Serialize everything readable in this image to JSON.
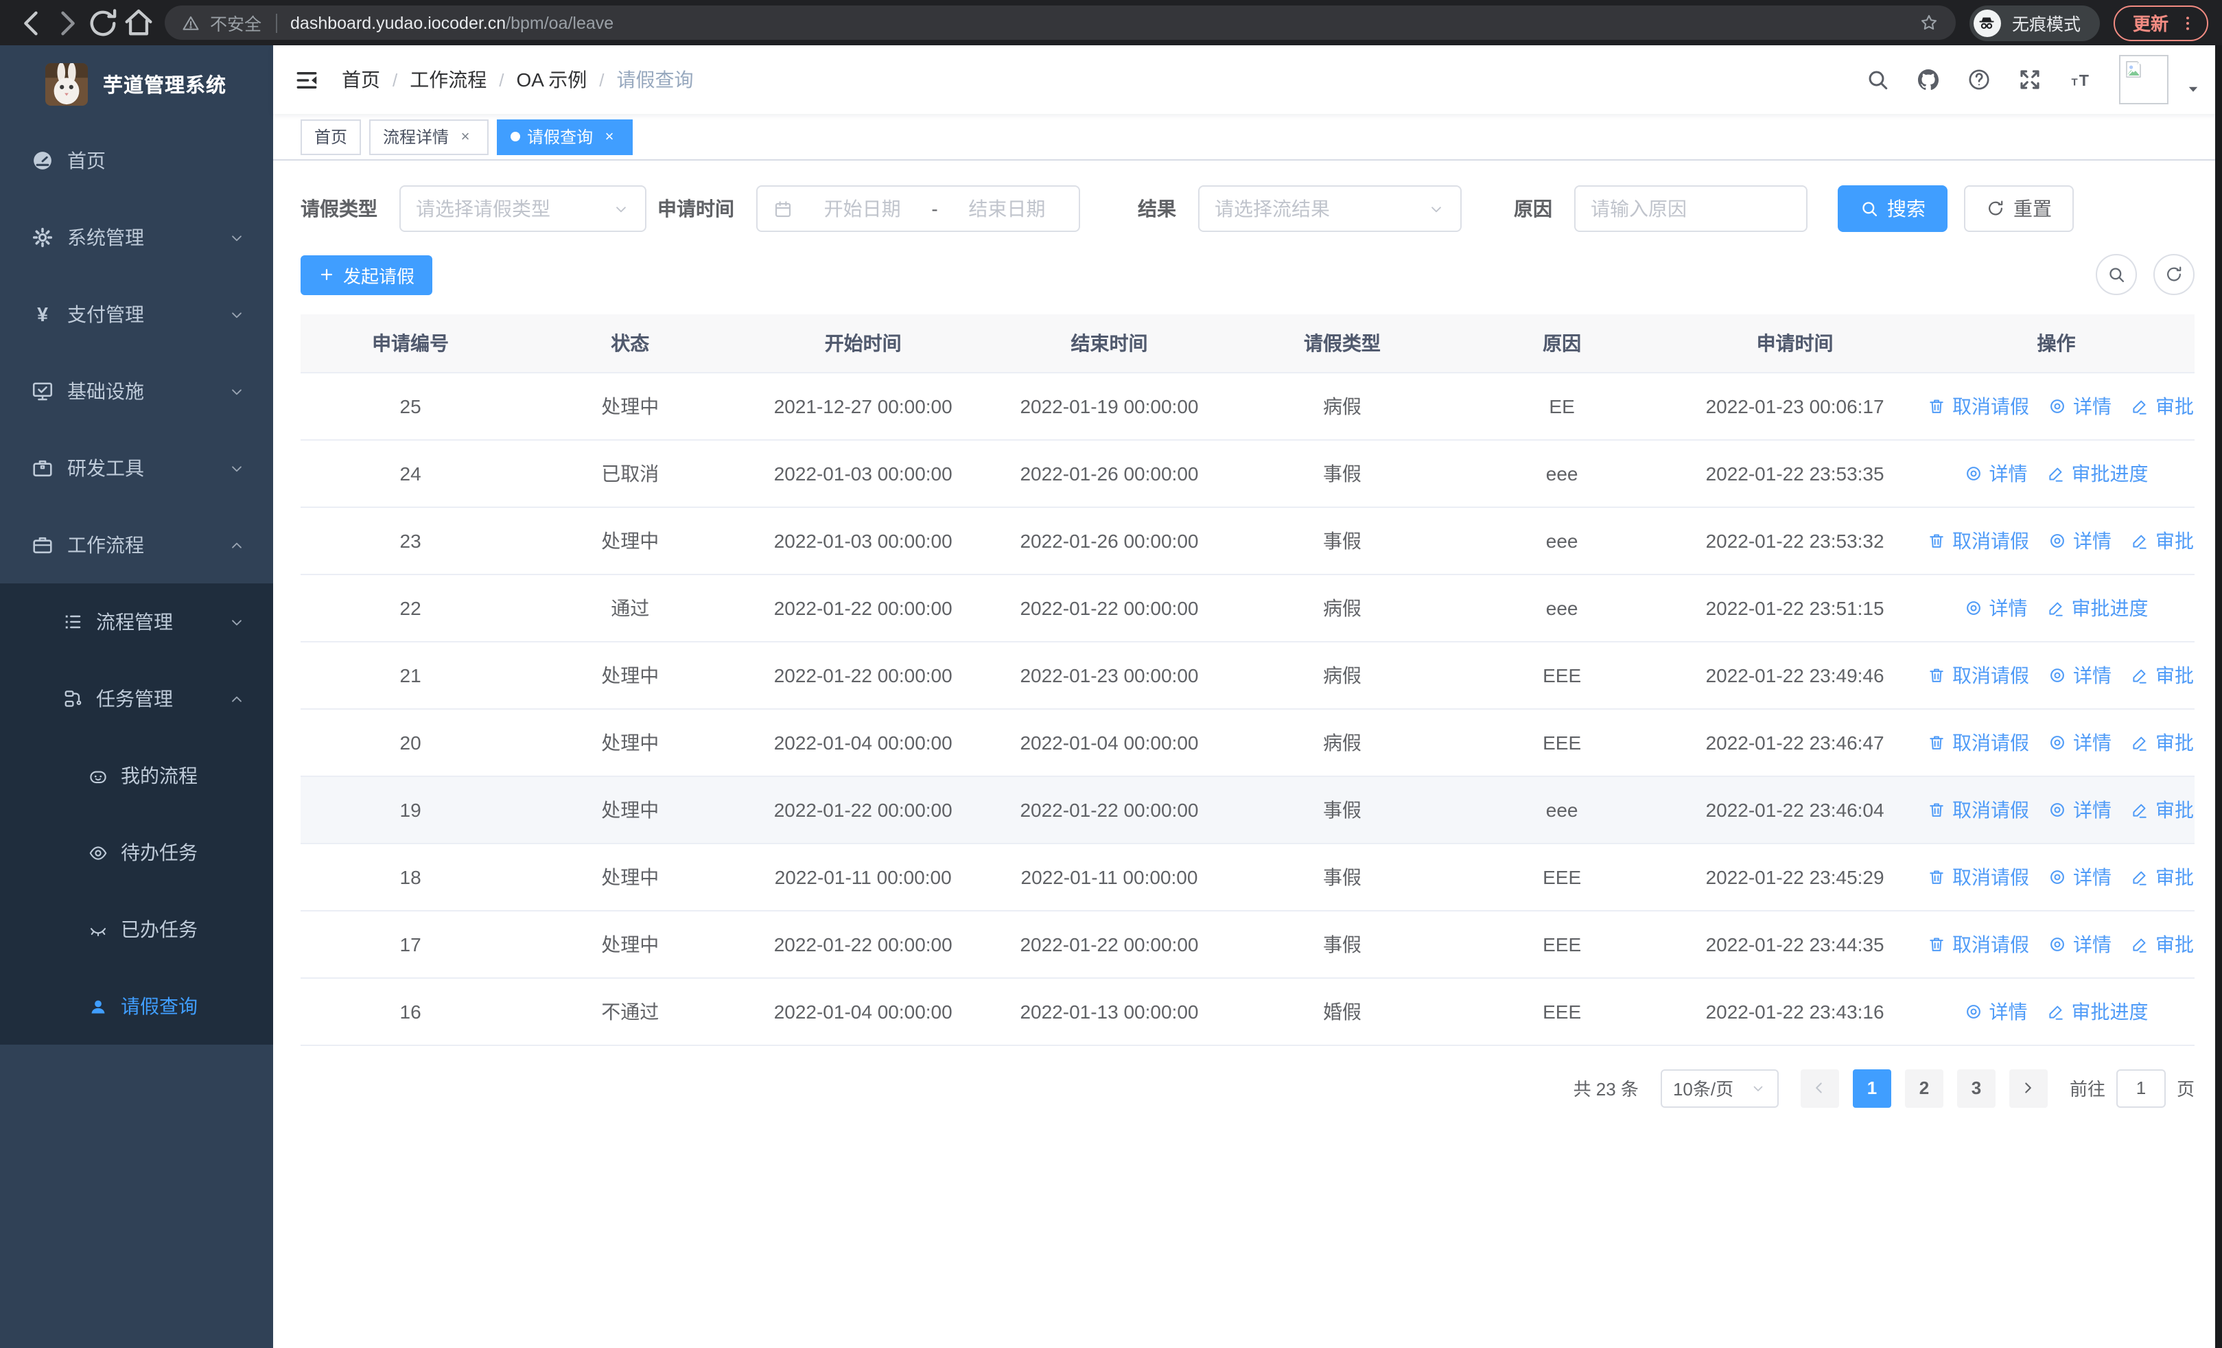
{
  "browser": {
    "security_label": "不安全",
    "url_host": "dashboard.yudao.iocoder.cn",
    "url_path": "/bpm/oa/leave",
    "incognito_label": "无痕模式",
    "update_label": "更新"
  },
  "sidebar": {
    "title": "芋道管理系统",
    "items": [
      {
        "label": "首页",
        "icon": "dashboard",
        "level": 1,
        "chevron": null,
        "in_submenu": false,
        "active": false
      },
      {
        "label": "系统管理",
        "icon": "gear",
        "level": 1,
        "chevron": "down",
        "in_submenu": false,
        "active": false
      },
      {
        "label": "支付管理",
        "icon": "yen",
        "level": 1,
        "chevron": "down",
        "in_submenu": false,
        "active": false
      },
      {
        "label": "基础设施",
        "icon": "monitor",
        "level": 1,
        "chevron": "down",
        "in_submenu": false,
        "active": false
      },
      {
        "label": "研发工具",
        "icon": "toolbox",
        "level": 1,
        "chevron": "down",
        "in_submenu": false,
        "active": false
      },
      {
        "label": "工作流程",
        "icon": "briefcase",
        "level": 1,
        "chevron": "up",
        "in_submenu": false,
        "active": false
      },
      {
        "label": "流程管理",
        "icon": "list",
        "level": 2,
        "chevron": "down",
        "in_submenu": true,
        "active": false
      },
      {
        "label": "任务管理",
        "icon": "flow",
        "level": 2,
        "chevron": "up",
        "in_submenu": true,
        "active": false
      },
      {
        "label": "我的流程",
        "icon": "face",
        "level": 3,
        "chevron": null,
        "in_submenu": true,
        "active": false
      },
      {
        "label": "待办任务",
        "icon": "eye",
        "level": 3,
        "chevron": null,
        "in_submenu": true,
        "active": false
      },
      {
        "label": "已办任务",
        "icon": "eye-closed",
        "level": 3,
        "chevron": null,
        "in_submenu": true,
        "active": false
      },
      {
        "label": "请假查询",
        "icon": "user",
        "level": 3,
        "chevron": null,
        "in_submenu": true,
        "active": true
      }
    ]
  },
  "breadcrumb": {
    "separator": "/",
    "items": [
      "首页",
      "工作流程",
      "OA 示例",
      "请假查询"
    ]
  },
  "tabs": [
    {
      "label": "首页",
      "closable": false,
      "active": false
    },
    {
      "label": "流程详情",
      "closable": true,
      "active": false
    },
    {
      "label": "请假查询",
      "closable": true,
      "active": true
    }
  ],
  "filters": {
    "leave_type": {
      "label": "请假类型",
      "placeholder": "请选择请假类型"
    },
    "apply_time": {
      "label": "申请时间",
      "start_placeholder": "开始日期",
      "separator": "-",
      "end_placeholder": "结束日期"
    },
    "result": {
      "label": "结果",
      "placeholder": "请选择流结果"
    },
    "reason": {
      "label": "原因",
      "placeholder": "请输入原因"
    },
    "search_label": "搜索",
    "reset_label": "重置"
  },
  "toolbar": {
    "create_label": "发起请假"
  },
  "table": {
    "headers": [
      "申请编号",
      "状态",
      "开始时间",
      "结束时间",
      "请假类型",
      "原因",
      "申请时间",
      "操作"
    ],
    "action_labels": {
      "cancel": "取消请假",
      "detail": "详情",
      "progress": "审批进度"
    },
    "rows": [
      {
        "id": "25",
        "status": "处理中",
        "start": "2021-12-27 00:00:00",
        "end": "2022-01-19 00:00:00",
        "type": "病假",
        "reason": "EE",
        "apply_time": "2022-01-23 00:06:17",
        "actions": [
          "cancel",
          "detail",
          "progress"
        ],
        "highlighted": false
      },
      {
        "id": "24",
        "status": "已取消",
        "start": "2022-01-03 00:00:00",
        "end": "2022-01-26 00:00:00",
        "type": "事假",
        "reason": "eee",
        "apply_time": "2022-01-22 23:53:35",
        "actions": [
          "detail",
          "progress"
        ],
        "highlighted": false
      },
      {
        "id": "23",
        "status": "处理中",
        "start": "2022-01-03 00:00:00",
        "end": "2022-01-26 00:00:00",
        "type": "事假",
        "reason": "eee",
        "apply_time": "2022-01-22 23:53:32",
        "actions": [
          "cancel",
          "detail",
          "progress"
        ],
        "highlighted": false
      },
      {
        "id": "22",
        "status": "通过",
        "start": "2022-01-22 00:00:00",
        "end": "2022-01-22 00:00:00",
        "type": "病假",
        "reason": "eee",
        "apply_time": "2022-01-22 23:51:15",
        "actions": [
          "detail",
          "progress"
        ],
        "highlighted": false
      },
      {
        "id": "21",
        "status": "处理中",
        "start": "2022-01-22 00:00:00",
        "end": "2022-01-23 00:00:00",
        "type": "病假",
        "reason": "EEE",
        "apply_time": "2022-01-22 23:49:46",
        "actions": [
          "cancel",
          "detail",
          "progress"
        ],
        "highlighted": false
      },
      {
        "id": "20",
        "status": "处理中",
        "start": "2022-01-04 00:00:00",
        "end": "2022-01-04 00:00:00",
        "type": "病假",
        "reason": "EEE",
        "apply_time": "2022-01-22 23:46:47",
        "actions": [
          "cancel",
          "detail",
          "progress"
        ],
        "highlighted": false
      },
      {
        "id": "19",
        "status": "处理中",
        "start": "2022-01-22 00:00:00",
        "end": "2022-01-22 00:00:00",
        "type": "事假",
        "reason": "eee",
        "apply_time": "2022-01-22 23:46:04",
        "actions": [
          "cancel",
          "detail",
          "progress"
        ],
        "highlighted": true
      },
      {
        "id": "18",
        "status": "处理中",
        "start": "2022-01-11 00:00:00",
        "end": "2022-01-11 00:00:00",
        "type": "事假",
        "reason": "EEE",
        "apply_time": "2022-01-22 23:45:29",
        "actions": [
          "cancel",
          "detail",
          "progress"
        ],
        "highlighted": false
      },
      {
        "id": "17",
        "status": "处理中",
        "start": "2022-01-22 00:00:00",
        "end": "2022-01-22 00:00:00",
        "type": "事假",
        "reason": "EEE",
        "apply_time": "2022-01-22 23:44:35",
        "actions": [
          "cancel",
          "detail",
          "progress"
        ],
        "highlighted": false
      },
      {
        "id": "16",
        "status": "不通过",
        "start": "2022-01-04 00:00:00",
        "end": "2022-01-13 00:00:00",
        "type": "婚假",
        "reason": "EEE",
        "apply_time": "2022-01-22 23:43:16",
        "actions": [
          "detail",
          "progress"
        ],
        "highlighted": false
      }
    ]
  },
  "pagination": {
    "total_label": "共 23 条",
    "page_size_label": "10条/页",
    "pages": [
      "1",
      "2",
      "3"
    ],
    "active_page": "1",
    "goto_label": "前往",
    "goto_value": "1",
    "page_unit": "页"
  },
  "colors": {
    "accent": "#409eff",
    "link": "#4f9bf7",
    "sidebar_bg": "#304156",
    "submenu_bg": "#1f2d3d",
    "sidebar_text": "#bfcbd9",
    "table_header_bg": "#f8f8f9",
    "row_highlight": "#f5f7fa",
    "update_accent": "#f28b82"
  }
}
